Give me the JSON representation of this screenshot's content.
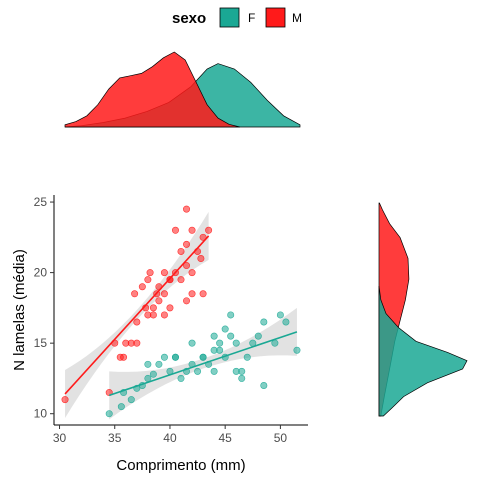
{
  "chart_data": {
    "type": "scatter",
    "xlabel": "Comprimento (mm)",
    "ylabel": "N lamelas (média)",
    "xlim": [
      29.5,
      52.5
    ],
    "ylim": [
      9.2,
      25.5
    ],
    "xticks": [
      "30",
      "35",
      "40",
      "45",
      "50"
    ],
    "yticks": [
      "10",
      "15",
      "20",
      "25"
    ],
    "legend": {
      "title": "sexo",
      "position": "top",
      "entries": [
        {
          "label": "F",
          "color": "#1aa894"
        },
        {
          "label": "M",
          "color": "#ff1a1a"
        }
      ]
    },
    "grid": false,
    "series": [
      {
        "name": "F",
        "color": "#1aa894",
        "points": [
          [
            34.5,
            10.0
          ],
          [
            35.8,
            11.5
          ],
          [
            35.6,
            10.5
          ],
          [
            36.5,
            11.0
          ],
          [
            37.0,
            11.8
          ],
          [
            37.5,
            12.0
          ],
          [
            38.0,
            12.5
          ],
          [
            38.5,
            12.8
          ],
          [
            39.0,
            13.5
          ],
          [
            38.0,
            13.5
          ],
          [
            39.5,
            14.0
          ],
          [
            40.0,
            13.0
          ],
          [
            40.5,
            14.0
          ],
          [
            41.0,
            12.5
          ],
          [
            41.5,
            13.0
          ],
          [
            42.0,
            13.5
          ],
          [
            42.5,
            13.0
          ],
          [
            43.0,
            14.0
          ],
          [
            43.5,
            13.5
          ],
          [
            44.0,
            14.5
          ],
          [
            44.0,
            13.0
          ],
          [
            44.5,
            15.0
          ],
          [
            45.0,
            14.0
          ],
          [
            45.0,
            16.0
          ],
          [
            45.5,
            15.5
          ],
          [
            45.5,
            17.0
          ],
          [
            46.0,
            13.0
          ],
          [
            46.5,
            12.5
          ],
          [
            46.5,
            13.0
          ],
          [
            47.0,
            14.0
          ],
          [
            47.5,
            15.0
          ],
          [
            48.0,
            15.5
          ],
          [
            48.5,
            16.5
          ],
          [
            48.5,
            12.0
          ],
          [
            49.5,
            15.0
          ],
          [
            50.0,
            17.0
          ],
          [
            50.5,
            16.5
          ],
          [
            51.5,
            14.5
          ],
          [
            44.0,
            15.5
          ],
          [
            43.0,
            14.0
          ],
          [
            42.0,
            15.0
          ],
          [
            46.0,
            15.0
          ],
          [
            44.5,
            14.5
          ],
          [
            40.5,
            14.0
          ]
        ],
        "trend": {
          "x0": 34.5,
          "y0": 11.3,
          "x1": 51.5,
          "y1": 15.8
        }
      },
      {
        "name": "M",
        "color": "#ff1a1a",
        "points": [
          [
            30.5,
            11.0
          ],
          [
            34.5,
            11.5
          ],
          [
            35.0,
            15.0
          ],
          [
            35.5,
            14.0
          ],
          [
            35.8,
            14.0
          ],
          [
            36.0,
            15.0
          ],
          [
            36.5,
            15.0
          ],
          [
            36.8,
            18.5
          ],
          [
            37.0,
            16.5
          ],
          [
            37.0,
            15.0
          ],
          [
            37.5,
            19.0
          ],
          [
            37.8,
            17.5
          ],
          [
            38.0,
            17.0
          ],
          [
            38.0,
            19.5
          ],
          [
            38.2,
            20.0
          ],
          [
            38.5,
            17.5
          ],
          [
            38.5,
            17.0
          ],
          [
            38.8,
            18.5
          ],
          [
            39.0,
            18.0
          ],
          [
            39.0,
            19.0
          ],
          [
            39.5,
            18.5
          ],
          [
            39.5,
            17.0
          ],
          [
            40.0,
            17.5
          ],
          [
            40.0,
            19.5
          ],
          [
            40.5,
            20.0
          ],
          [
            40.5,
            23.0
          ],
          [
            41.0,
            19.5
          ],
          [
            41.0,
            21.5
          ],
          [
            41.5,
            20.5
          ],
          [
            41.5,
            22.0
          ],
          [
            41.5,
            24.5
          ],
          [
            42.0,
            20.0
          ],
          [
            42.0,
            23.0
          ],
          [
            42.0,
            18.5
          ],
          [
            42.5,
            21.5
          ],
          [
            42.8,
            21.0
          ],
          [
            43.0,
            22.5
          ],
          [
            43.0,
            18.5
          ],
          [
            43.5,
            23.0
          ],
          [
            40.0,
            19.5
          ],
          [
            39.5,
            20.0
          ],
          [
            41.5,
            18.0
          ]
        ],
        "trend": {
          "x0": 30.5,
          "y0": 11.4,
          "x1": 43.5,
          "y1": 22.6
        }
      }
    ],
    "marginal_x_density": {
      "F": [
        [
          30.5,
          0.0
        ],
        [
          32,
          0.003
        ],
        [
          34,
          0.01
        ],
        [
          36,
          0.02
        ],
        [
          38,
          0.035
        ],
        [
          40,
          0.055
        ],
        [
          42,
          0.09
        ],
        [
          43.5,
          0.13
        ],
        [
          44.5,
          0.142
        ],
        [
          46,
          0.13
        ],
        [
          47.5,
          0.1
        ],
        [
          49,
          0.06
        ],
        [
          50.5,
          0.025
        ],
        [
          52,
          0.005
        ]
      ],
      "M": [
        [
          30.5,
          0.005
        ],
        [
          31.5,
          0.012
        ],
        [
          32.5,
          0.025
        ],
        [
          33.5,
          0.05
        ],
        [
          34.5,
          0.085
        ],
        [
          35.5,
          0.11
        ],
        [
          36.5,
          0.115
        ],
        [
          37.5,
          0.12
        ],
        [
          38.5,
          0.135
        ],
        [
          39.5,
          0.155
        ],
        [
          40.5,
          0.168
        ],
        [
          41.5,
          0.15
        ],
        [
          42.5,
          0.1
        ],
        [
          43.5,
          0.05
        ],
        [
          44.5,
          0.02
        ],
        [
          45.5,
          0.006
        ],
        [
          46.5,
          0.0
        ]
      ]
    },
    "marginal_y_density": {
      "F": [
        [
          9.6,
          0.05
        ],
        [
          10.2,
          0.15
        ],
        [
          11,
          0.28
        ],
        [
          12,
          0.55
        ],
        [
          13,
          0.95
        ],
        [
          13.6,
          1.0
        ],
        [
          14.2,
          0.78
        ],
        [
          15,
          0.42
        ],
        [
          16,
          0.22
        ],
        [
          17,
          0.08
        ],
        [
          18,
          0.02
        ],
        [
          19,
          0.0
        ]
      ],
      "M": [
        [
          9.6,
          0.02
        ],
        [
          11,
          0.06
        ],
        [
          13,
          0.12
        ],
        [
          15,
          0.18
        ],
        [
          16.5,
          0.24
        ],
        [
          18,
          0.3
        ],
        [
          19.5,
          0.34
        ],
        [
          21,
          0.33
        ],
        [
          22.5,
          0.24
        ],
        [
          23.5,
          0.12
        ],
        [
          24.5,
          0.04
        ],
        [
          25,
          0.005
        ]
      ]
    }
  }
}
